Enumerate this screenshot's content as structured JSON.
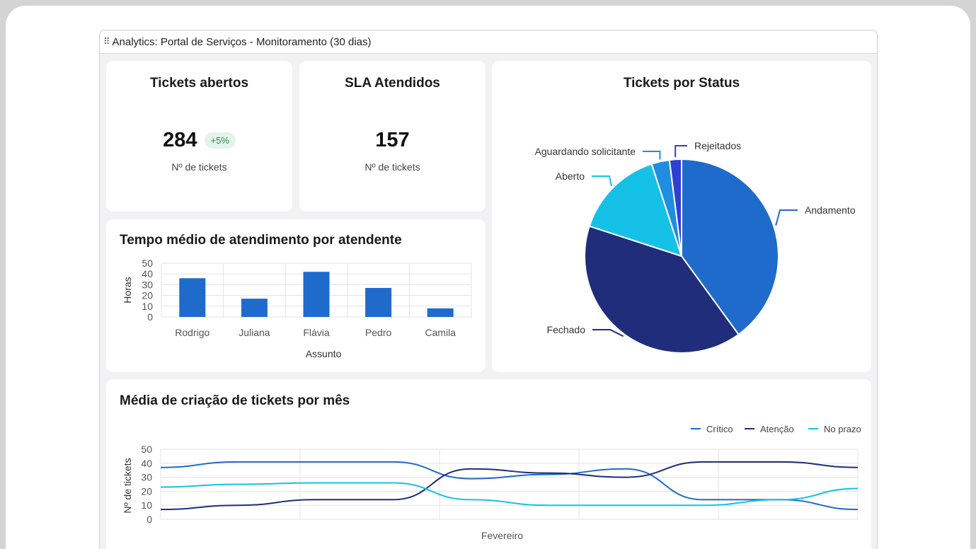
{
  "window": {
    "title": "Analytics: Portal de Serviços - Monitoramento (30 dias)"
  },
  "kpi_open": {
    "title": "Tickets abertos",
    "value": "284",
    "badge": "+5%",
    "subtitle": "Nº de tickets"
  },
  "kpi_sla": {
    "title": "SLA Atendidos",
    "value": "157",
    "subtitle": "Nº de tickets"
  },
  "bar_card": {
    "title": "Tempo médio de atendimento por atendente"
  },
  "pie_card": {
    "title": "Tickets por Status"
  },
  "line_card": {
    "title": "Média de criação de tickets por mês"
  },
  "colors": {
    "blue": "#1f6bcc",
    "navy": "#1f2d7a",
    "cyan": "#16c1e8",
    "mid_blue": "#1f8ee0",
    "royal": "#2f3fd1"
  },
  "chart_data": [
    {
      "type": "bar",
      "categories": [
        "Rodrigo",
        "Juliana",
        "Flávia",
        "Pedro",
        "Camila"
      ],
      "values": [
        36,
        17,
        42,
        27,
        8
      ],
      "xlabel": "Assunto",
      "ylabel": "Horas",
      "ylim": [
        0,
        50
      ],
      "yticks": [
        "0",
        "10",
        "20",
        "30",
        "40",
        "50"
      ],
      "grid": true
    },
    {
      "type": "pie",
      "slices": [
        {
          "label": "Andamento",
          "value": 40,
          "color": "#1f6bcc"
        },
        {
          "label": "Fechado",
          "value": 40,
          "color": "#1f2d7a"
        },
        {
          "label": "Aberto",
          "value": 15,
          "color": "#16c1e8"
        },
        {
          "label": "Aguardando solicitante",
          "value": 3,
          "color": "#1f8ee0"
        },
        {
          "label": "Rejeitados",
          "value": 2,
          "color": "#2f3fd1"
        }
      ]
    },
    {
      "type": "line",
      "x": [
        0,
        1,
        2,
        3,
        4,
        5,
        6,
        7,
        8,
        9
      ],
      "xlabel": "Fevereiro",
      "ylabel": "Nº de tickets",
      "ylim": [
        0,
        50
      ],
      "yticks": [
        "0",
        "10",
        "20",
        "30",
        "40",
        "50"
      ],
      "legend_position": "top-right",
      "grid": true,
      "series": [
        {
          "name": "Crítico",
          "color": "#1f6bcc",
          "values": [
            37,
            41,
            41,
            41,
            29,
            32,
            36,
            14,
            14,
            7
          ]
        },
        {
          "name": "Atenção",
          "color": "#1f2d7a",
          "values": [
            7,
            10,
            14,
            14,
            36,
            33,
            30,
            41,
            41,
            37
          ]
        },
        {
          "name": "No prazo",
          "color": "#16c1e8",
          "values": [
            23,
            25,
            26,
            26,
            14,
            10,
            10,
            10,
            14,
            22
          ]
        }
      ]
    }
  ]
}
